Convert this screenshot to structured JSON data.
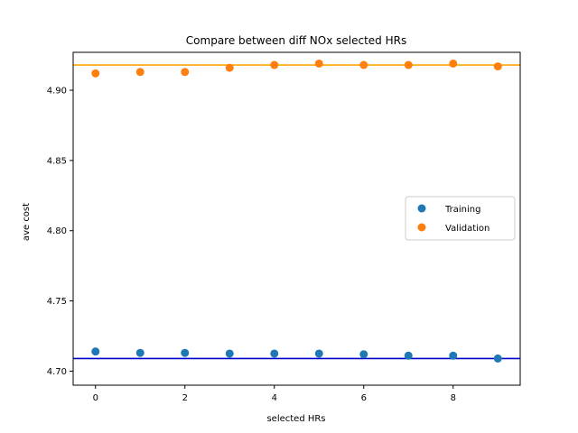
{
  "chart_data": {
    "type": "scatter",
    "title": "Compare between diff NOx selected HRs",
    "xlabel": "selected HRs",
    "ylabel": "ave cost",
    "xlim": [
      -0.5,
      9.5
    ],
    "ylim": [
      4.69,
      4.927
    ],
    "xticks": [
      0,
      2,
      4,
      6,
      8
    ],
    "yticks": [
      4.7,
      4.75,
      4.8,
      4.85,
      4.9
    ],
    "ytick_labels": [
      "4.70",
      "4.75",
      "4.80",
      "4.85",
      "4.90"
    ],
    "grid": false,
    "legend_position": "center-right",
    "series": [
      {
        "name": "Training",
        "color": "#1f77b4",
        "x": [
          0,
          1,
          2,
          3,
          4,
          5,
          6,
          7,
          8,
          9
        ],
        "y": [
          4.714,
          4.713,
          4.713,
          4.7125,
          4.7125,
          4.7125,
          4.712,
          4.711,
          4.711,
          4.709
        ]
      },
      {
        "name": "Validation",
        "color": "#ff7f0e",
        "x": [
          0,
          1,
          2,
          3,
          4,
          5,
          6,
          7,
          8,
          9
        ],
        "y": [
          4.912,
          4.913,
          4.913,
          4.916,
          4.918,
          4.919,
          4.918,
          4.918,
          4.919,
          4.917
        ]
      }
    ],
    "hlines": [
      {
        "y": 4.709,
        "color": "#0000cc"
      },
      {
        "y": 4.918,
        "color": "#ffa500"
      }
    ]
  }
}
